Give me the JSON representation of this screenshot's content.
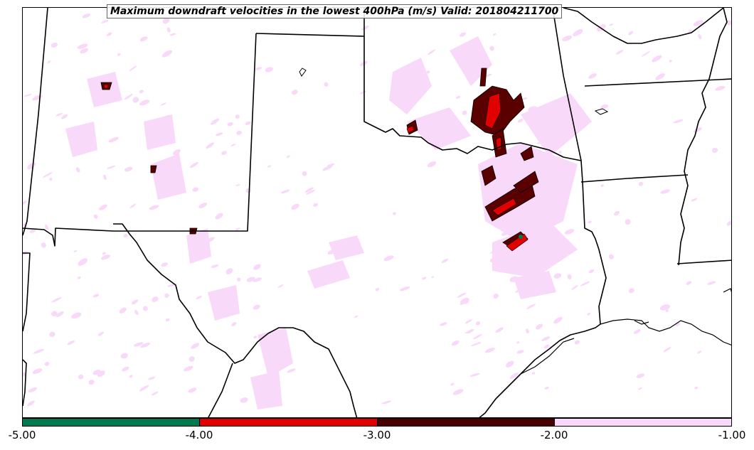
{
  "title": "Maximum downdraft velocities in the lowest 400hPa (m/s) Valid: 201804211700",
  "colorbar": {
    "ticks": [
      "-5.00",
      "-4.00",
      "-3.00",
      "-2.00",
      "-1.00"
    ],
    "bins": [
      {
        "range": [
          -5,
          -4
        ],
        "color": "#00794e"
      },
      {
        "range": [
          -4,
          -3
        ],
        "color": "#e00000"
      },
      {
        "range": [
          -3,
          -2
        ],
        "color": "#4a0000"
      },
      {
        "range": [
          -2,
          -1
        ],
        "color": "#f9d9f9"
      }
    ]
  },
  "colors": {
    "light": "#f9d9f9",
    "dark": "#5a0000",
    "red": "#e00000",
    "green": "#00794e",
    "border": "#000000"
  }
}
